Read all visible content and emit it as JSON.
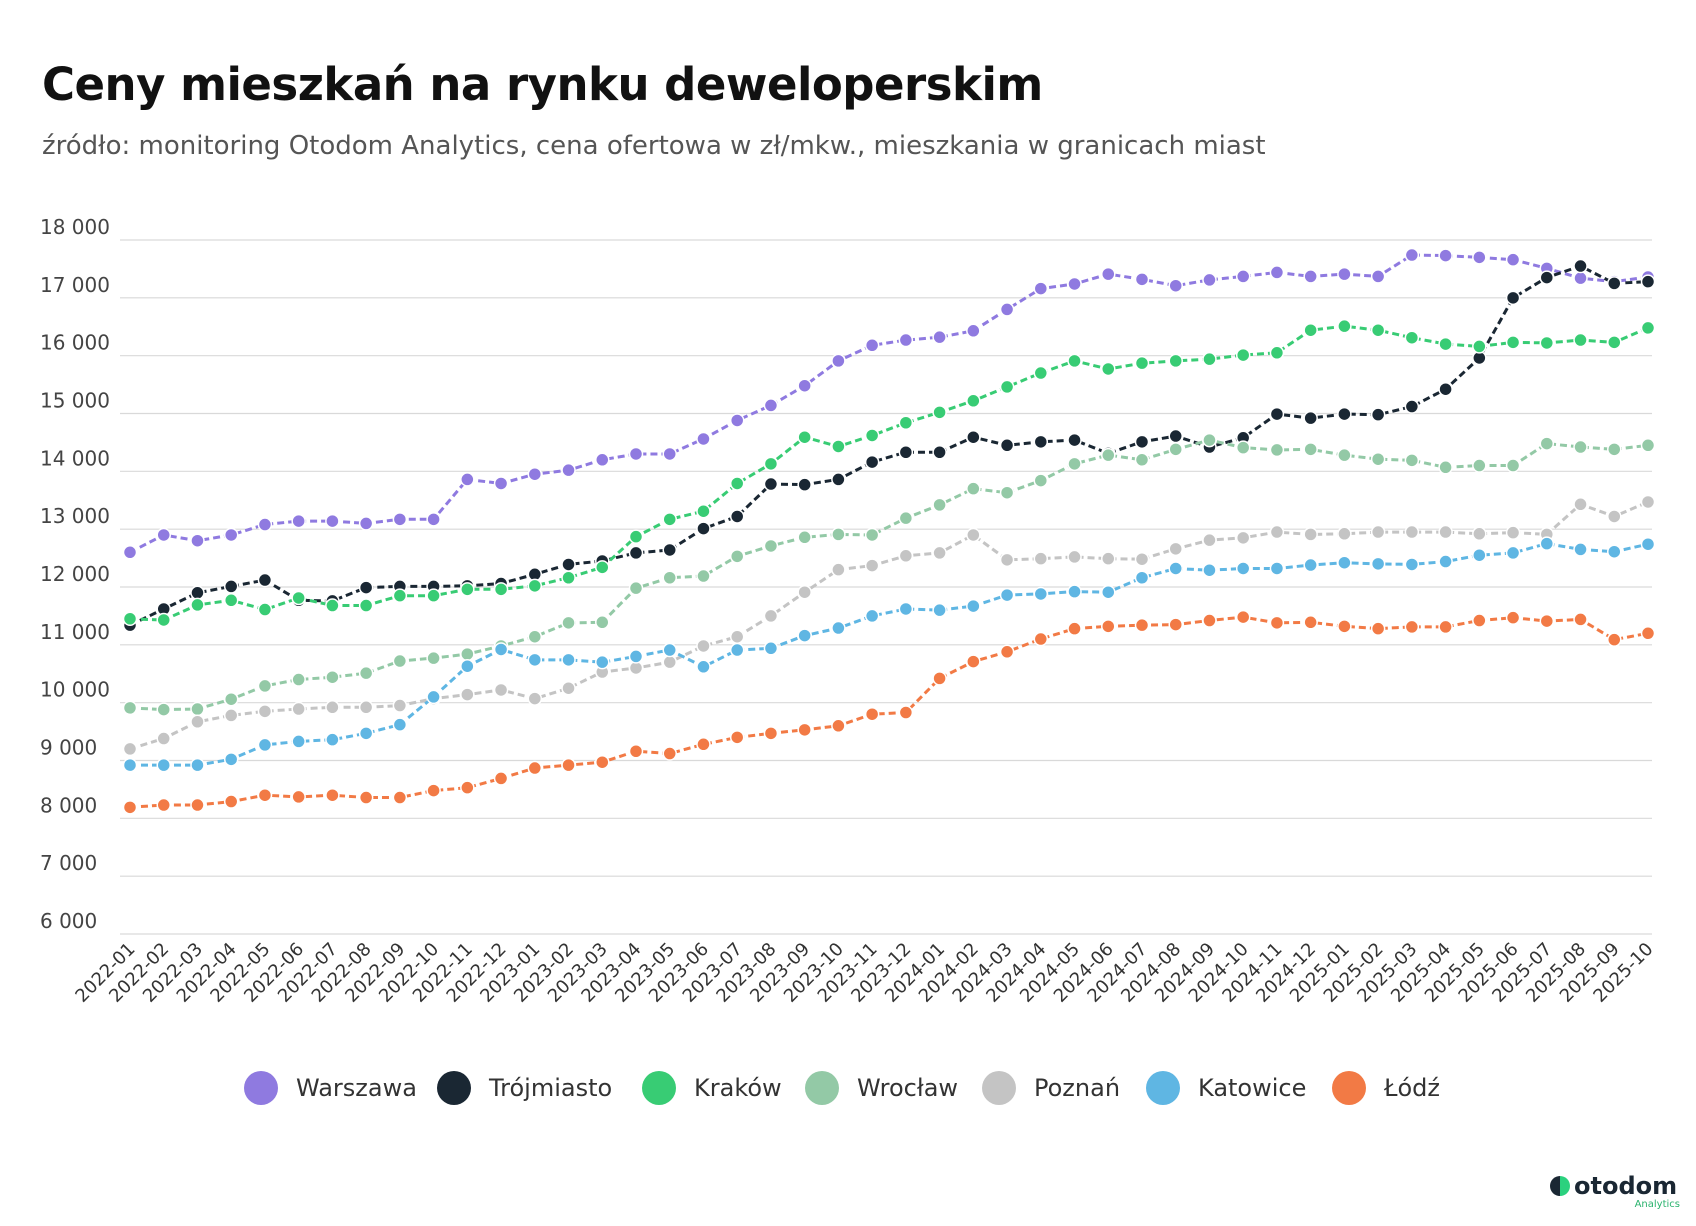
{
  "title": "Ceny mieszkań na rynku deweloperskim",
  "subtitle": "źródło: monitoring Otodom Analytics, cena ofertowa w zł/mkw., mieszkania w granicach miast",
  "logo": {
    "word": "otodom",
    "sub": "Analytics"
  },
  "chart_data": {
    "type": "line",
    "ylim": [
      6000,
      18000
    ],
    "yticks": [
      6000,
      7000,
      8000,
      9000,
      10000,
      11000,
      12000,
      13000,
      14000,
      15000,
      16000,
      17000,
      18000
    ],
    "ytick_labels": [
      "6 000",
      "7 000",
      "8 000",
      "9 000",
      "10 000",
      "11 000",
      "12 000",
      "13 000",
      "14 000",
      "15 000",
      "16 000",
      "17 000",
      "18 000"
    ],
    "grid": true,
    "legend_position": "bottom-center",
    "categories": [
      "2022-01",
      "2022-02",
      "2022-03",
      "2022-04",
      "2022-05",
      "2022-06",
      "2022-07",
      "2022-08",
      "2022-09",
      "2022-10",
      "2022-11",
      "2022-12",
      "2023-01",
      "2023-02",
      "2023-03",
      "2023-04",
      "2023-05",
      "2023-06",
      "2023-07",
      "2023-08",
      "2023-09",
      "2023-10",
      "2023-11",
      "2023-12",
      "2024-01",
      "2024-02",
      "2024-03",
      "2024-04",
      "2024-05",
      "2024-06",
      "2024-07",
      "2024-08",
      "2024-09",
      "2024-10",
      "2024-11",
      "2024-12",
      "2025-01",
      "2025-02",
      "2025-03",
      "2025-04",
      "2025-05",
      "2025-06",
      "2025-07",
      "2025-08",
      "2025-09",
      "2025-10"
    ],
    "series": [
      {
        "name": "Warszawa",
        "color": "#8f7ae0",
        "values": [
          12600,
          12900,
          12800,
          12900,
          13080,
          13140,
          13140,
          13100,
          13170,
          13170,
          13860,
          13790,
          13950,
          14020,
          14200,
          14300,
          14300,
          14560,
          14880,
          15140,
          15480,
          15910,
          16180,
          16270,
          16320,
          16430,
          16800,
          17160,
          17240,
          17410,
          17320,
          17210,
          17310,
          17370,
          17440,
          17370,
          17410,
          17370,
          17740,
          17730,
          17700,
          17660,
          17510,
          17340,
          17280,
          17360
        ]
      },
      {
        "name": "Trójmiasto",
        "color": "#1a2733",
        "values": [
          11340,
          11620,
          11900,
          12010,
          12120,
          11770,
          11760,
          11990,
          12010,
          12010,
          12020,
          12060,
          12220,
          12390,
          12450,
          12590,
          12640,
          13010,
          13220,
          13780,
          13770,
          13860,
          14160,
          14330,
          14330,
          14590,
          14450,
          14510,
          14540,
          14310,
          14510,
          14610,
          14420,
          14580,
          14990,
          14920,
          14990,
          14980,
          15120,
          15420,
          15960,
          17000,
          17350,
          17550,
          17250,
          17280
        ]
      },
      {
        "name": "Kraków",
        "color": "#38cc74",
        "values": [
          11450,
          11430,
          11690,
          11770,
          11610,
          11810,
          11680,
          11680,
          11850,
          11850,
          11960,
          11960,
          12020,
          12160,
          12340,
          12870,
          13170,
          13310,
          13790,
          14130,
          14590,
          14430,
          14620,
          14840,
          15020,
          15220,
          15460,
          15700,
          15910,
          15770,
          15870,
          15910,
          15940,
          16010,
          16050,
          16440,
          16510,
          16440,
          16310,
          16200,
          16160,
          16230,
          16220,
          16270,
          16230,
          16480
        ]
      },
      {
        "name": "Wrocław",
        "color": "#93c9a6",
        "values": [
          9910,
          9880,
          9890,
          10060,
          10290,
          10400,
          10440,
          10510,
          10720,
          10770,
          10840,
          10980,
          11140,
          11380,
          11390,
          11980,
          12160,
          12190,
          12530,
          12710,
          12860,
          12910,
          12900,
          13190,
          13420,
          13700,
          13630,
          13840,
          14130,
          14280,
          14200,
          14380,
          14540,
          14410,
          14370,
          14380,
          14280,
          14210,
          14190,
          14070,
          14100,
          14100,
          14480,
          14420,
          14380,
          14450
        ]
      },
      {
        "name": "Poznań",
        "color": "#c4c4c4",
        "values": [
          9200,
          9380,
          9670,
          9780,
          9850,
          9890,
          9920,
          9920,
          9950,
          10070,
          10140,
          10220,
          10070,
          10250,
          10530,
          10600,
          10700,
          10980,
          11140,
          11500,
          11910,
          12300,
          12370,
          12540,
          12590,
          12900,
          12470,
          12490,
          12520,
          12490,
          12480,
          12660,
          12810,
          12850,
          12950,
          12910,
          12920,
          12950,
          12950,
          12950,
          12920,
          12940,
          12910,
          13430,
          13220,
          13470
        ]
      },
      {
        "name": "Katowice",
        "color": "#5fb6e3",
        "values": [
          8920,
          8920,
          8920,
          9020,
          9270,
          9330,
          9360,
          9470,
          9620,
          10100,
          10630,
          10920,
          10740,
          10740,
          10700,
          10800,
          10910,
          10620,
          10910,
          10940,
          11160,
          11290,
          11500,
          11620,
          11600,
          11670,
          11860,
          11880,
          11920,
          11910,
          12160,
          12320,
          12290,
          12320,
          12320,
          12380,
          12420,
          12400,
          12390,
          12440,
          12550,
          12590,
          12750,
          12650,
          12610,
          12740
        ]
      },
      {
        "name": "Łódź",
        "color": "#f27a45",
        "values": [
          8190,
          8230,
          8230,
          8290,
          8400,
          8370,
          8400,
          8360,
          8360,
          8480,
          8530,
          8690,
          8870,
          8920,
          8970,
          9160,
          9120,
          9280,
          9400,
          9470,
          9530,
          9600,
          9800,
          9830,
          10420,
          10710,
          10880,
          11100,
          11280,
          11320,
          11340,
          11350,
          11420,
          11480,
          11380,
          11390,
          11320,
          11280,
          11310,
          11310,
          11420,
          11470,
          11410,
          11440,
          11090,
          11200
        ]
      }
    ]
  }
}
